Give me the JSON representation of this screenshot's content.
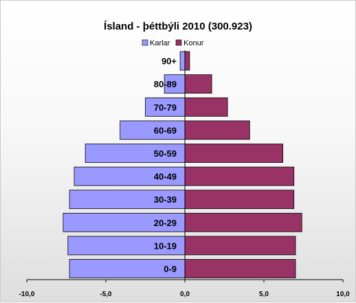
{
  "chart_data": {
    "type": "bar",
    "orientation": "horizontal",
    "layout": "population-pyramid",
    "title": "Ísland - þéttbýli 2010 (300.923)",
    "categories": [
      "0-9",
      "10-19",
      "20-29",
      "30-39",
      "40-49",
      "50-59",
      "60-69",
      "70-79",
      "80-89",
      "90+"
    ],
    "series": [
      {
        "name": "Karlar",
        "color": "#9999ff",
        "values": [
          -7.3,
          -7.4,
          -7.7,
          -7.3,
          -7.0,
          -6.3,
          -4.1,
          -2.5,
          -1.3,
          -0.3
        ]
      },
      {
        "name": "Konur",
        "color": "#993366",
        "values": [
          7.0,
          7.0,
          7.4,
          6.9,
          6.9,
          6.2,
          4.1,
          2.7,
          1.7,
          0.3
        ]
      }
    ],
    "xlim": [
      -10,
      10
    ],
    "xticks": [
      -10,
      -5,
      0,
      5,
      10
    ],
    "xtick_labels": [
      "-10,0",
      "-5,0",
      "0,0",
      "5,0",
      "10,0"
    ],
    "xlabel": "",
    "ylabel": "",
    "grid": false,
    "legend_position": "top"
  }
}
